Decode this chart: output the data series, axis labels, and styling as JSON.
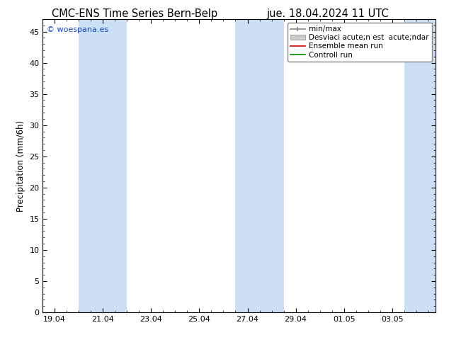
{
  "title_left": "CMC-ENS Time Series Bern-Belp",
  "title_right": "jue. 18.04.2024 11 UTC",
  "ylabel": "Precipitation (mm/6h)",
  "ylim": [
    0,
    47
  ],
  "yticks": [
    0,
    5,
    10,
    15,
    20,
    25,
    30,
    35,
    40,
    45
  ],
  "xtick_labels": [
    "19.04",
    "21.04",
    "23.04",
    "25.04",
    "27.04",
    "29.04",
    "01.05",
    "03.05"
  ],
  "xtick_positions": [
    0,
    2,
    4,
    6,
    8,
    10,
    12,
    14
  ],
  "xlim": [
    -0.5,
    15.8
  ],
  "shaded_bands": [
    {
      "xmin": 1.0,
      "xmax": 3.0
    },
    {
      "xmin": 7.5,
      "xmax": 9.5
    },
    {
      "xmin": 14.5,
      "xmax": 15.8
    }
  ],
  "band_color": "#cce0f5",
  "watermark": "© woespana.es",
  "watermark_color": "#1144cc",
  "bg_color": "#ffffff",
  "plot_bg_color": "#ffffff",
  "title_fontsize": 10.5,
  "tick_fontsize": 8,
  "ylabel_fontsize": 8.5,
  "legend_fontsize": 7.5
}
